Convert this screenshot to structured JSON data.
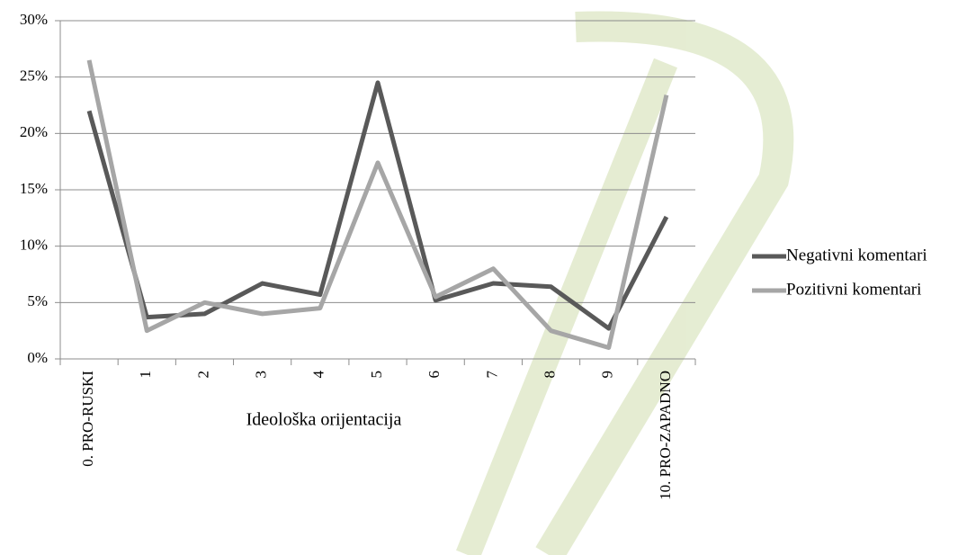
{
  "chart_data": {
    "type": "line",
    "x_label": "Ideološka orijentacija",
    "categories": [
      "0. PRO-RUSKI",
      "1",
      "2",
      "3",
      "4",
      "5",
      "6",
      "7",
      "8",
      "9",
      "10. PRO-ZAPADNO"
    ],
    "series": [
      {
        "name": "Negativni komentari",
        "color": "#595959",
        "values": [
          22,
          3.7,
          4,
          6.7,
          5.7,
          24.5,
          5.2,
          6.7,
          6.4,
          2.7,
          12.6
        ]
      },
      {
        "name": "Pozitivni komentari",
        "color": "#a6a6a6",
        "values": [
          26.5,
          2.5,
          5,
          4,
          4.5,
          17.4,
          5.5,
          8,
          2.5,
          1,
          23.4
        ]
      }
    ],
    "ylim": [
      0,
      30
    ],
    "yticks": [
      {
        "value": 0,
        "label": "0%"
      },
      {
        "value": 5,
        "label": "5%"
      },
      {
        "value": 10,
        "label": "10%"
      },
      {
        "value": 15,
        "label": "15%"
      },
      {
        "value": 20,
        "label": "20%"
      },
      {
        "value": 25,
        "label": "25%"
      },
      {
        "value": 30,
        "label": "30%"
      }
    ],
    "grid": true,
    "legend": "right"
  }
}
